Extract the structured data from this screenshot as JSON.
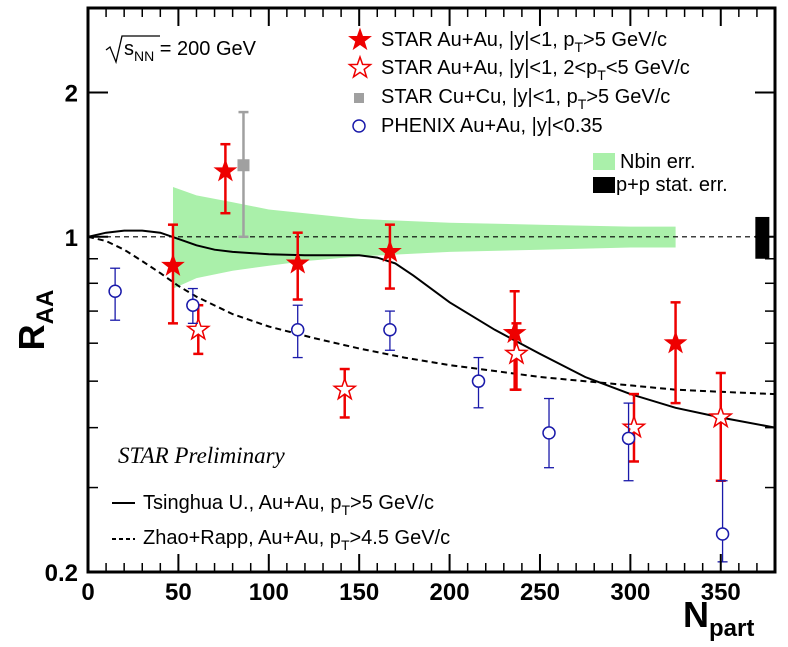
{
  "chart_data": {
    "type": "scatter",
    "title": "",
    "xlabel_main": "N",
    "xlabel_sub": "part",
    "ylabel_main": "R",
    "ylabel_sub": "AA",
    "xlim": [
      0,
      380
    ],
    "ylim": [
      0.2,
      3.0
    ],
    "yscale": "log",
    "x_ticks": [
      0,
      50,
      100,
      150,
      200,
      250,
      300,
      350
    ],
    "x_tick_labels": [
      "0",
      "50",
      "100",
      "150",
      "200",
      "250",
      "300",
      "350"
    ],
    "y_tick_labels": [
      {
        "v": 0.2,
        "t": "0.2"
      },
      {
        "v": 1,
        "t": "1"
      },
      {
        "v": 2,
        "t": "2"
      }
    ],
    "y_minor_ticks": [
      0.3,
      0.4,
      0.5,
      0.6,
      0.7,
      0.8,
      0.9,
      3.0
    ],
    "energy_label": {
      "sqrt": "s",
      "sub": "NN",
      "rest": " = 200 GeV"
    },
    "preliminary": "STAR Preliminary",
    "reference_line": 1.0,
    "series": [
      {
        "name": "STAR Au+Au, |y|<1, pT>5 GeV/c",
        "legend": {
          "pre": "STAR Au+Au, |y|<1, p",
          "sub": "T",
          "post": ">5 GeV/c"
        },
        "marker": "star-filled",
        "color": "#ee0000",
        "points": [
          {
            "x": 47,
            "y": 0.87,
            "lo": 0.66,
            "hi": 1.06
          },
          {
            "x": 76,
            "y": 1.37,
            "lo": 1.12,
            "hi": 1.56
          },
          {
            "x": 116,
            "y": 0.88,
            "lo": 0.74,
            "hi": 1.02
          },
          {
            "x": 167,
            "y": 0.93,
            "lo": 0.78,
            "hi": 1.06
          },
          {
            "x": 236,
            "y": 0.63,
            "lo": 0.48,
            "hi": 0.77
          },
          {
            "x": 325,
            "y": 0.6,
            "lo": 0.45,
            "hi": 0.73
          }
        ]
      },
      {
        "name": "STAR Au+Au, |y|<1, 2<pT<5 GeV/c",
        "legend": {
          "pre": "STAR Au+Au, |y|<1, 2<p",
          "sub": "T",
          "post": "<5 GeV/c"
        },
        "marker": "star-open",
        "color": "#ee0000",
        "points": [
          {
            "x": 61,
            "y": 0.64,
            "lo": 0.57,
            "hi": 0.72
          },
          {
            "x": 142,
            "y": 0.48,
            "lo": 0.42,
            "hi": 0.53
          },
          {
            "x": 237,
            "y": 0.57,
            "lo": 0.48,
            "hi": 0.66
          },
          {
            "x": 302,
            "y": 0.4,
            "lo": 0.34,
            "hi": 0.47
          },
          {
            "x": 350,
            "y": 0.42,
            "lo": 0.31,
            "hi": 0.52
          }
        ]
      },
      {
        "name": "STAR Cu+Cu, |y|<1, pT>5 GeV/c",
        "legend": {
          "pre": "STAR Cu+Cu, |y|<1, p",
          "sub": "T",
          "post": ">5 GeV/c"
        },
        "marker": "square-filled",
        "color": "#a0a0a0",
        "points": [
          {
            "x": 86,
            "y": 1.41,
            "lo": 1.0,
            "hi": 1.82
          }
        ]
      },
      {
        "name": "PHENIX Au+Au, |y|<0.35",
        "legend": {
          "pre": "PHENIX Au+Au, |y|<0.35",
          "sub": "",
          "post": ""
        },
        "marker": "circle-open",
        "color": "#1a1aaa",
        "points": [
          {
            "x": 15,
            "y": 0.77,
            "lo": 0.67,
            "hi": 0.86
          },
          {
            "x": 58,
            "y": 0.72,
            "lo": 0.66,
            "hi": 0.78
          },
          {
            "x": 116,
            "y": 0.64,
            "lo": 0.56,
            "hi": 0.72
          },
          {
            "x": 167,
            "y": 0.64,
            "lo": 0.58,
            "hi": 0.7
          },
          {
            "x": 216,
            "y": 0.5,
            "lo": 0.44,
            "hi": 0.56
          },
          {
            "x": 255,
            "y": 0.39,
            "lo": 0.33,
            "hi": 0.46
          },
          {
            "x": 299,
            "y": 0.38,
            "lo": 0.31,
            "hi": 0.45
          },
          {
            "x": 351,
            "y": 0.24,
            "lo": 0.21,
            "hi": 0.31
          }
        ]
      }
    ],
    "bands": [
      {
        "name": "Nbin err.",
        "color": "#aaf0aa",
        "x": [
          47,
          60,
          80,
          100,
          120,
          150,
          200,
          250,
          300,
          325
        ],
        "upper": [
          1.27,
          1.22,
          1.18,
          1.14,
          1.12,
          1.09,
          1.07,
          1.06,
          1.05,
          1.05
        ],
        "lower": [
          0.78,
          0.82,
          0.85,
          0.87,
          0.89,
          0.91,
          0.93,
          0.94,
          0.95,
          0.95
        ]
      }
    ],
    "pp_box": {
      "name": "p+p stat. err.",
      "color": "#000000",
      "x": 373,
      "lo": 0.9,
      "hi": 1.1
    },
    "curves": [
      {
        "name": "Tsinghua U., Au+Au, pT>5 GeV/c",
        "legend": {
          "pre": "Tsinghua U., Au+Au, p",
          "sub": "T",
          "post": ">5 GeV/c"
        },
        "style": "solid",
        "x": [
          0,
          10,
          20,
          30,
          40,
          50,
          60,
          70,
          80,
          100,
          120,
          140,
          150,
          160,
          170,
          180,
          200,
          225,
          250,
          275,
          300,
          325,
          350,
          380
        ],
        "y": [
          1.0,
          1.02,
          1.03,
          1.03,
          1.02,
          0.99,
          0.96,
          0.94,
          0.93,
          0.92,
          0.915,
          0.915,
          0.915,
          0.905,
          0.88,
          0.83,
          0.73,
          0.64,
          0.57,
          0.51,
          0.47,
          0.44,
          0.42,
          0.4
        ]
      },
      {
        "name": "Zhao+Rapp, Au+Au, pT>4.5 GeV/c",
        "legend": {
          "pre": "Zhao+Rapp, Au+Au, p",
          "sub": "T",
          "post": ">4.5 GeV/c"
        },
        "style": "dashed",
        "x": [
          0,
          10,
          20,
          30,
          40,
          50,
          60,
          80,
          100,
          125,
          150,
          175,
          200,
          225,
          250,
          275,
          300,
          325,
          350,
          380
        ],
        "y": [
          1.0,
          0.98,
          0.94,
          0.89,
          0.84,
          0.79,
          0.75,
          0.69,
          0.65,
          0.615,
          0.585,
          0.56,
          0.54,
          0.525,
          0.51,
          0.5,
          0.49,
          0.48,
          0.475,
          0.47
        ]
      }
    ]
  }
}
